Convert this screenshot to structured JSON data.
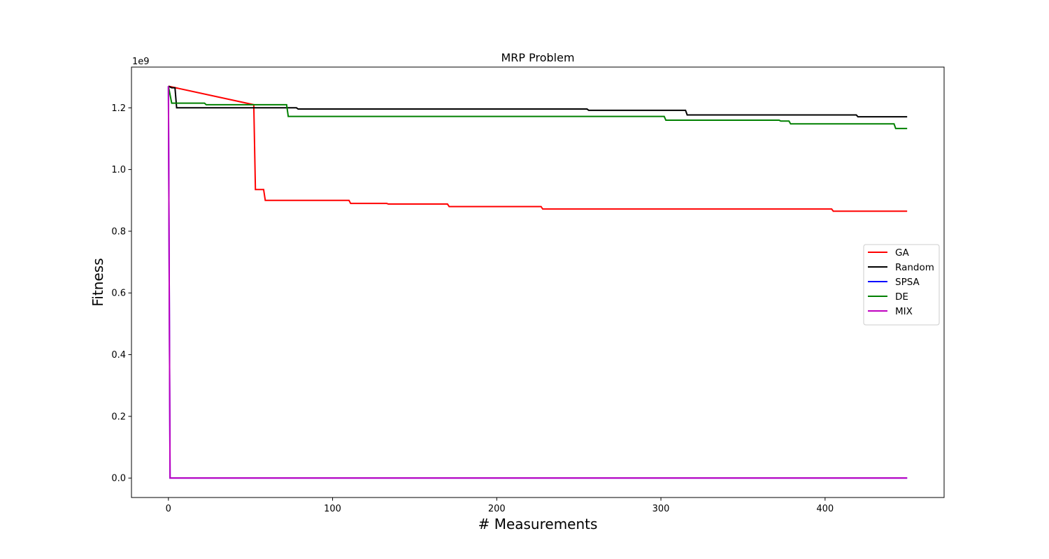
{
  "chart_data": {
    "type": "line",
    "title": "MRP Problem",
    "xlabel": "# Measurements",
    "ylabel": "Fitness",
    "y_offset_label": "1e9",
    "y_scale": 1000000000,
    "xlim": [
      -22.5,
      472.5
    ],
    "ylim": [
      -63000000,
      1332000000
    ],
    "xticks": [
      0,
      100,
      200,
      300,
      400
    ],
    "xtick_labels": [
      "0",
      "100",
      "200",
      "300",
      "400"
    ],
    "yticks": [
      0,
      200000000,
      400000000,
      600000000,
      800000000,
      1000000000,
      1200000000
    ],
    "ytick_labels": [
      "0.0",
      "0.2",
      "0.4",
      "0.6",
      "0.8",
      "1.0",
      "1.2"
    ],
    "grid": false,
    "legend_position": "center-right",
    "series": [
      {
        "name": "GA",
        "color": "#ff0000",
        "x": [
          0,
          52,
          53,
          58,
          59,
          110,
          111,
          133,
          134,
          170,
          171,
          227,
          228,
          404,
          405,
          450
        ],
        "y": [
          1270000000,
          1210000000,
          935000000,
          935000000,
          900000000,
          900000000,
          890000000,
          890000000,
          888000000,
          888000000,
          880000000,
          880000000,
          872000000,
          872000000,
          865000000,
          865000000
        ]
      },
      {
        "name": "Random",
        "color": "#000000",
        "x": [
          0,
          2,
          4,
          5,
          78,
          79,
          255,
          256,
          315,
          316,
          419,
          420,
          450
        ],
        "y": [
          1270000000,
          1265000000,
          1265000000,
          1200000000,
          1200000000,
          1196000000,
          1196000000,
          1192000000,
          1192000000,
          1177000000,
          1177000000,
          1171000000,
          1171000000
        ]
      },
      {
        "name": "SPSA",
        "color": "#0000ff",
        "x": [
          0,
          1,
          450
        ],
        "y": [
          1270000000,
          0,
          0
        ]
      },
      {
        "name": "DE",
        "color": "#008000",
        "x": [
          0,
          2,
          22,
          23,
          72,
          73,
          302,
          303,
          372,
          373,
          378,
          379,
          442,
          443,
          450
        ],
        "y": [
          1270000000,
          1215000000,
          1215000000,
          1210000000,
          1210000000,
          1172000000,
          1172000000,
          1160000000,
          1160000000,
          1157000000,
          1157000000,
          1148000000,
          1148000000,
          1133000000,
          1133000000
        ]
      },
      {
        "name": "MIX",
        "color": "#bf00bf",
        "x": [
          0,
          1,
          450
        ],
        "y": [
          1270000000,
          0,
          0
        ]
      }
    ]
  }
}
